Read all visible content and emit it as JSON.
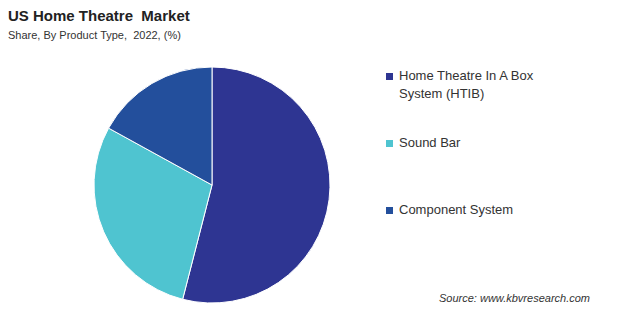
{
  "chart_data": {
    "type": "pie",
    "title": "US Home Theatre  Market",
    "subtitle": "Share, By Product Type,  2022, (%)",
    "categories": [
      "Home Theatre In A Box System (HTIB)",
      "Sound Bar",
      "Component System"
    ],
    "values": [
      54,
      29,
      17
    ],
    "colors": [
      "#2e3592",
      "#4fc4d0",
      "#234f9c"
    ],
    "legend": "right",
    "source": "Source: www.kbvresearch.com"
  }
}
